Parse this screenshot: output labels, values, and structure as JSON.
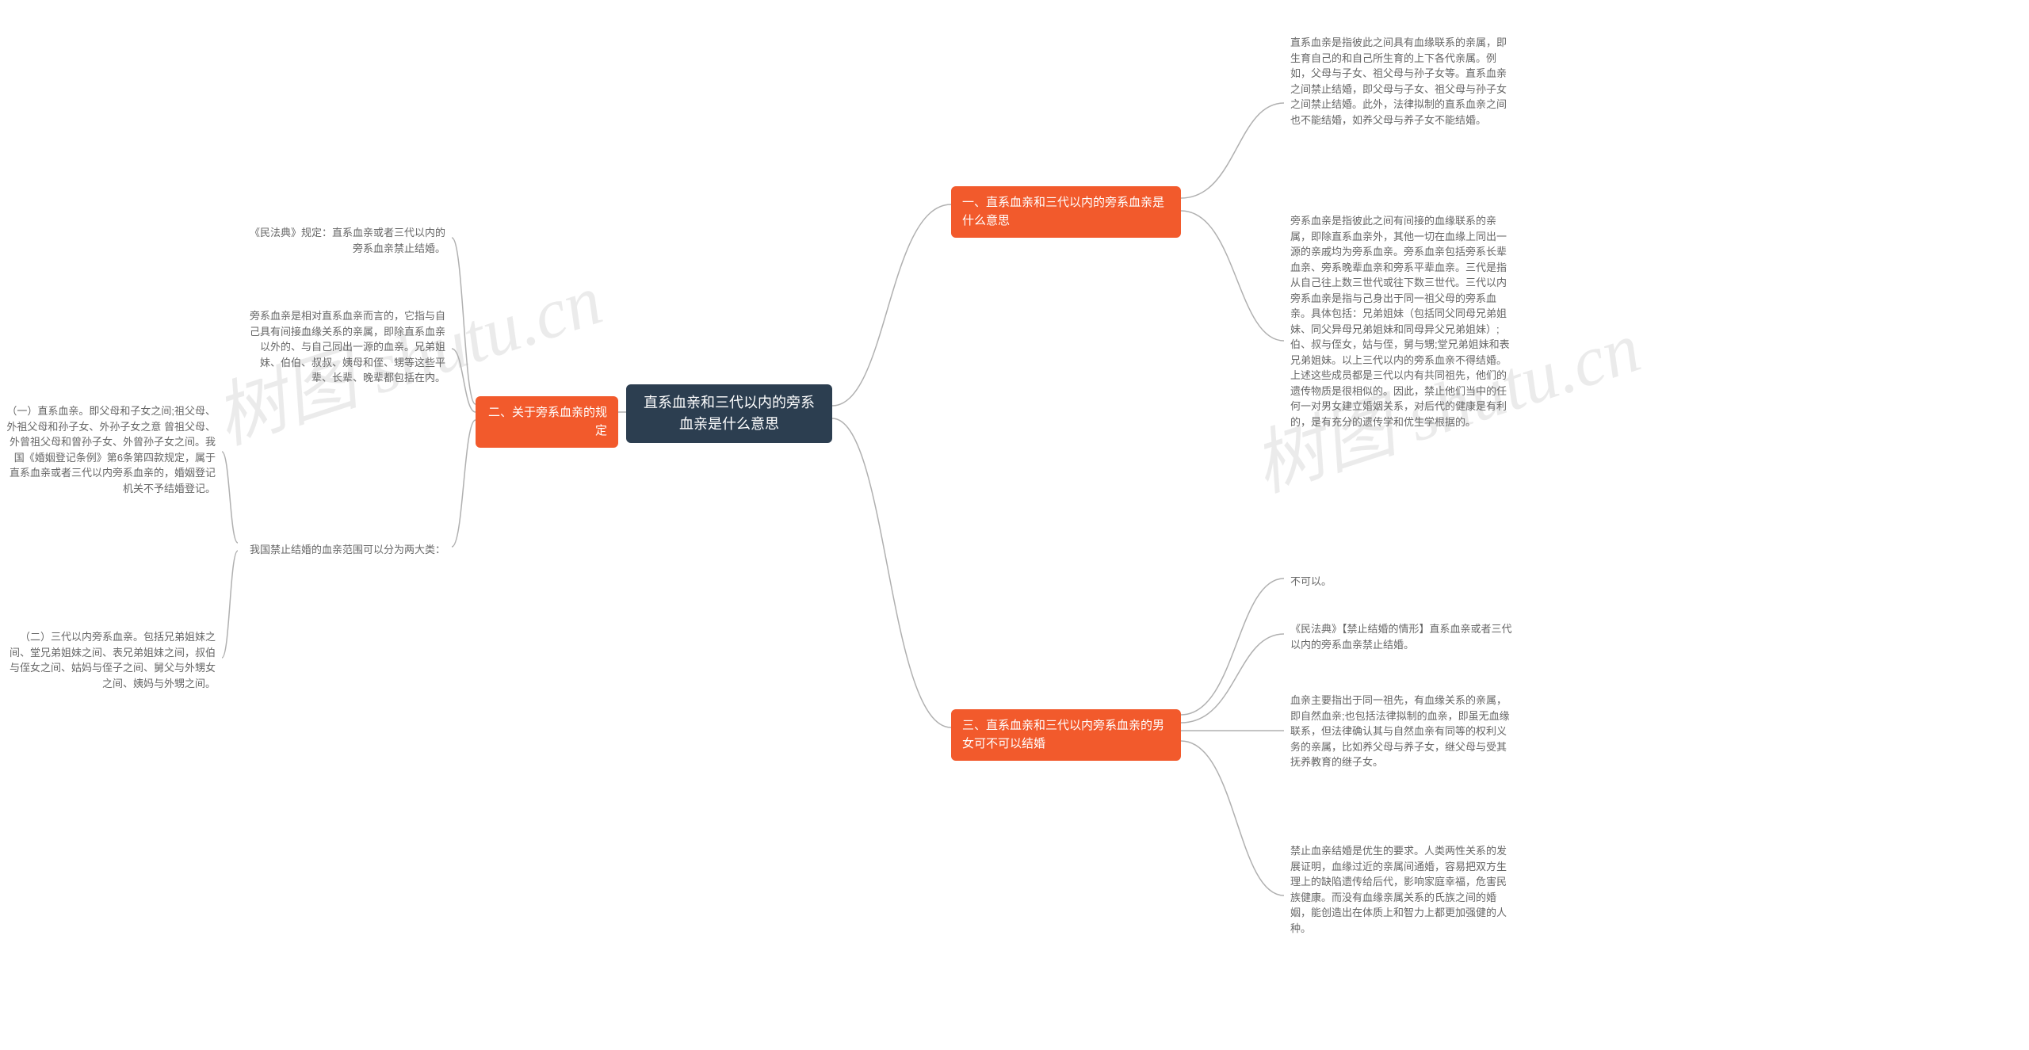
{
  "watermark": "树图 shutu.cn",
  "colors": {
    "root_bg": "#2c3e50",
    "branch_bg": "#f25a2c",
    "text_light": "#ffffff",
    "leaf_text": "#666666",
    "connector": "#b0b0b0",
    "background": "#ffffff"
  },
  "root": {
    "title": "直系血亲和三代以内的旁系血亲是什么意思"
  },
  "branch1": {
    "title": "一、直系血亲和三代以内的旁系血亲是什么意思",
    "leafA": "直系血亲是指彼此之间具有血缘联系的亲属，即生育自己的和自己所生育的上下各代亲属。例如，父母与子女、祖父母与孙子女等。直系血亲之间禁止结婚，即父母与子女、祖父母与孙子女之间禁止结婚。此外，法律拟制的直系血亲之间也不能结婚，如养父母与养子女不能结婚。",
    "leafB": "旁系血亲是指彼此之间有间接的血缘联系的亲属，即除直系血亲外，其他一切在血缘上同出一源的亲戚均为旁系血亲。旁系血亲包括旁系长辈血亲、旁系晚辈血亲和旁系平辈血亲。三代是指从自己往上数三世代或往下数三世代。三代以内旁系血亲是指与己身出于同一祖父母的旁系血亲。具体包括：兄弟姐妹（包括同父同母兄弟姐妹、同父异母兄弟姐妹和同母异父兄弟姐妹）;伯、叔与侄女，姑与侄，舅与甥;堂兄弟姐妹和表兄弟姐妹。以上三代以内的旁系血亲不得结婚。上述这些成员都是三代以内有共同祖先，他们的遗传物质是很相似的。因此，禁止他们当中的任何一对男女建立婚姻关系，对后代的健康是有利的，是有充分的遗传学和优生学根据的。"
  },
  "branch2": {
    "title": "二、关于旁系血亲的规定",
    "leafA": "《民法典》规定：直系血亲或者三代以内的旁系血亲禁止结婚。",
    "leafB": "旁系血亲是相对直系血亲而言的，它指与自己具有间接血缘关系的亲属，即除直系血亲以外的、与自己同出一源的血亲。兄弟姐妹、伯伯、叔叔、姨母和侄、甥等这些平辈、长辈、晚辈都包括在内。",
    "leafC": "我国禁止结婚的血亲范围可以分为两大类：",
    "leafC_sub1": "（一）直系血亲。即父母和子女之间;祖父母、外祖父母和孙子女、外孙子女之意 曾祖父母、外曾祖父母和曾孙子女、外曾孙子女之间。我国《婚姻登记条例》第6条第四款规定，属于直系血亲或者三代以内旁系血亲的，婚姻登记机关不予结婚登记。",
    "leafC_sub2": "（二）三代以内旁系血亲。包括兄弟姐妹之间、堂兄弟姐妹之间、表兄弟姐妹之间，叔伯与侄女之间、姑妈与侄子之间、舅父与外甥女之间、姨妈与外甥之间。"
  },
  "branch3": {
    "title": "三、直系血亲和三代以内旁系血亲的男女可不可以结婚",
    "leafA": "不可以。",
    "leafB": "《民法典》【禁止结婚的情形】直系血亲或者三代以内的旁系血亲禁止结婚。",
    "leafC": "血亲主要指出于同一祖先，有血缘关系的亲属，即自然血亲;也包括法律拟制的血亲，即虽无血缘联系，但法律确认其与自然血亲有同等的权利义务的亲属，比如养父母与养子女，继父母与受其抚养教育的继子女。",
    "leafD": "禁止血亲结婚是优生的要求。人类两性关系的发展证明，血缘过近的亲属间通婚，容易把双方生理上的缺陷遗传给后代，影响家庭幸福，危害民族健康。而没有血缘亲属关系的氏族之间的婚姻，能创造出在体质上和智力上都更加强健的人种。"
  },
  "style": {
    "root_fontsize": 18,
    "branch_fontsize": 15,
    "leaf_fontsize": 13,
    "node_radius": 6,
    "connector_width": 1.5
  }
}
